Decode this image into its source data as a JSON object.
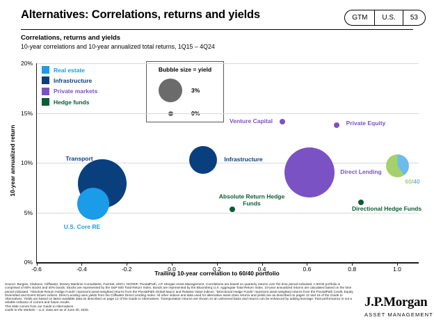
{
  "slide": {
    "title": "Alternatives: Correlations, returns and yields",
    "page_tag": {
      "series": "GTM",
      "region": "U.S.",
      "page": "53"
    },
    "heading": "Correlations, returns and yields",
    "subheading": "10-year correlations and 10-year annualized total returns, 1Q15 – 4Q24"
  },
  "legend": {
    "items": [
      {
        "label": "Real estate",
        "color": "#1b9ce8"
      },
      {
        "label": "Infrastructure",
        "color": "#0a3f7e"
      },
      {
        "label": "Private markets",
        "color": "#7b52c4"
      },
      {
        "label": "Hedge funds",
        "color": "#0a5c33"
      }
    ]
  },
  "bubble_size_legend": {
    "title": "Bubble size = yield",
    "large_label": "3%",
    "small_label": "0%",
    "circle_color": "#6b6b6b"
  },
  "chart_data": {
    "type": "bubble",
    "title": "Correlations, returns and yields",
    "subtitle": "10-year correlations and 10-year annualized total returns, 1Q15 – 4Q24",
    "xlabel": "Trailing 10-year correlation to 60/40 portfolio",
    "ylabel": "10-year annualized return",
    "xlim": [
      -0.6,
      1.1
    ],
    "ylim": [
      0,
      20
    ],
    "x_ticks": [
      "-0.6",
      "-0.4",
      "-0.2",
      "0.0",
      "0.2",
      "0.4",
      "0.6",
      "0.8",
      "1.0"
    ],
    "y_ticks": [
      "0%",
      "5%",
      "10%",
      "15%",
      "20%"
    ],
    "grid": "horizontal",
    "bubble_scale": {
      "yield_pct_large": 3,
      "yield_pct_small": 0
    },
    "groups": [
      {
        "name": "Real estate",
        "color": "#1b9ce8"
      },
      {
        "name": "Infrastructure",
        "color": "#0a3f7e"
      },
      {
        "name": "Private markets",
        "color": "#7b52c4"
      },
      {
        "name": "Hedge funds",
        "color": "#0a5c33"
      }
    ],
    "points": [
      {
        "id": "transport",
        "label": "Transport",
        "group": "Infrastructure",
        "correlation": -0.31,
        "return_pct": 7.9,
        "yield_pct_est": 7.0,
        "radius_px": 35
      },
      {
        "id": "us_core_re",
        "label": "U.S. Core RE",
        "group": "Real estate",
        "correlation": -0.35,
        "return_pct": 5.9,
        "yield_pct_est": 4.3,
        "radius_px": 23
      },
      {
        "id": "infrastructure",
        "label": "Infrastructure",
        "group": "Infrastructure",
        "correlation": 0.14,
        "return_pct": 10.3,
        "yield_pct_est": 3.7,
        "radius_px": 20
      },
      {
        "id": "venture_capital",
        "label": "Venture Capital",
        "group": "Private markets",
        "correlation": 0.49,
        "return_pct": 14.1,
        "yield_pct_est": 0.1,
        "radius_px": 4
      },
      {
        "id": "private_equity",
        "label": "Private Equity",
        "group": "Private markets",
        "correlation": 0.73,
        "return_pct": 13.8,
        "yield_pct_est": 0.1,
        "radius_px": 4
      },
      {
        "id": "direct_lending",
        "label": "Direct Lending",
        "group": "Private markets",
        "correlation": 0.61,
        "return_pct": 9.0,
        "yield_pct_est": 7.2,
        "radius_px": 36
      },
      {
        "id": "absolute_return_hedge_funds",
        "label": "Absolute Return Hedge Funds",
        "group": "Hedge funds",
        "correlation": 0.27,
        "return_pct": 5.3,
        "yield_pct_est": 0.1,
        "radius_px": 4
      },
      {
        "id": "directional_hedge_funds",
        "label": "Directional Hedge Funds",
        "group": "Hedge funds",
        "correlation": 0.84,
        "return_pct": 6.0,
        "yield_pct_est": 0.1,
        "radius_px": 4
      },
      {
        "id": "sixty_forty",
        "label": "60/40",
        "group": "60/40 portfolio",
        "correlation": 1.0,
        "return_pct": 9.7,
        "yield_pct_est": 2.9,
        "radius_px": 16.5,
        "pie_slices": [
          {
            "color": "#6bbbeb",
            "percent": 40
          },
          {
            "color": "#a6d06b",
            "percent": 60
          }
        ],
        "label_parts": [
          {
            "text": "60/",
            "color": "#a6d06b"
          },
          {
            "text": "40",
            "color": "#6bbbeb"
          }
        ]
      }
    ]
  },
  "footer": {
    "source": "Source: Burgiss, Clarkson, Cliffwater, Drewry Maritime Consultants, FactSet, MSCI, NCREIF, PivotalPath, J.P. Morgan Asset Management. Correlations are based on quarterly returns over the time period indicated. A 60/40 portfolio is comprised of 60% stocks and 40% bonds. Stocks are represented by the S&P 500 Total Return Index. Bonds are represented by the Bloomberg U.S. Aggregate Total Return Index. 10-year annualized returns are calculated based on the time period indicated. “Absolute Return Hedge Funds” represent asset-weighted returns from the PivotalPath Global Macro and Relative Value indices. “Directional Hedge Funds” represent asset-weighted returns from the PivotalPath Credit, Equity Diversified and Event Driven indices. Direct Lending uses yields from the Cliffwater Direct Lending Index. All other indices and data used for alternative asset class returns and yields are as described on pages 12 and 16 of the Guide to Alternatives. Yields are based on latest available data as described on page 12 of the Guide to Alternatives. Transportation returns are shown on an unlevered basis and returns can be enhanced by adding leverage. Past performance is not a reliable indicator of current and future results.",
    "slide_note": "This slide comes from our Guide to Alternatives.",
    "gtm_note_italic": "Guide to the Markets – U.S.",
    "gtm_note_rest": " Data are as of June 30, 2025."
  },
  "logo": {
    "name": "J.P.Morgan",
    "division": "ASSET MANAGEMENT"
  }
}
